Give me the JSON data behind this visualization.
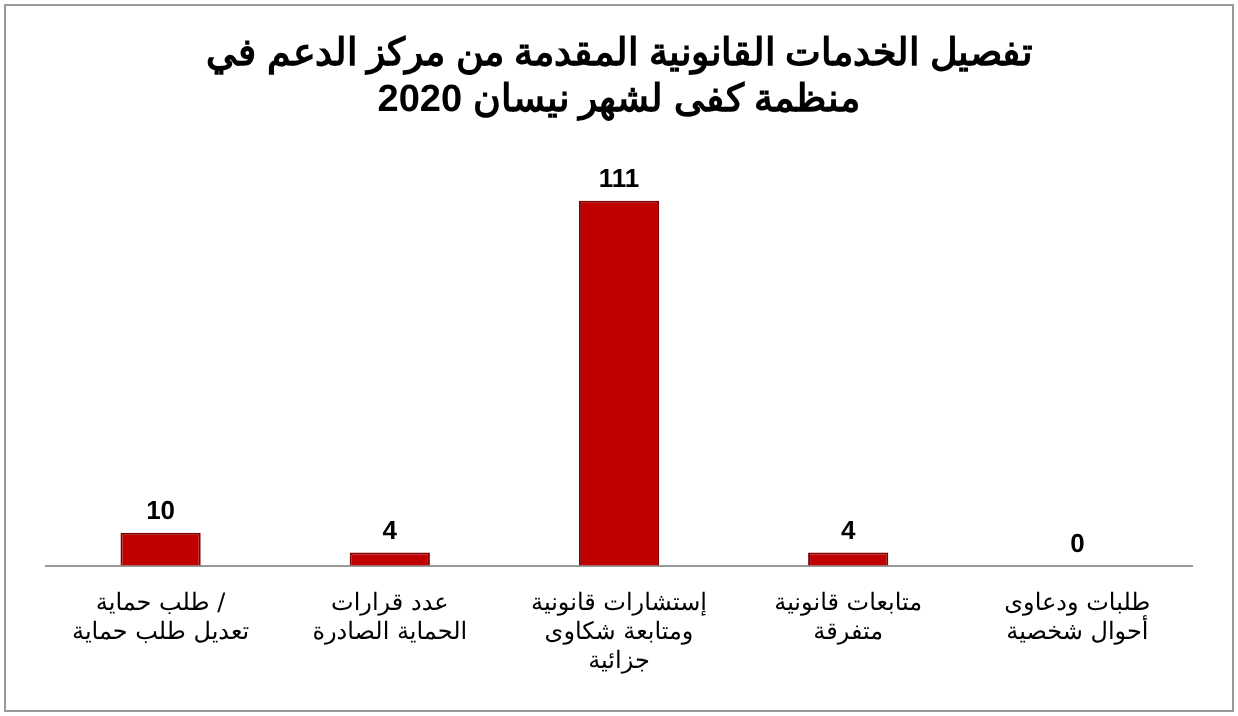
{
  "chart_data": {
    "type": "bar",
    "title": "تفصيل الخدمات القانونية المقدمة من مركز الدعم في منظمة كفى لشهر نيسان 2020",
    "categories": [
      "طلب حماية / تعديل طلب حماية",
      "عدد قرارات الحماية الصادرة",
      "إستشارات قانونية ومتابعة شكاوى جزائية",
      "متابعات قانونية متفرقة",
      "طلبات ودعاوى أحوال شخصية"
    ],
    "values": [
      10,
      4,
      111,
      4,
      0
    ],
    "color": "#c00000",
    "data_labels": true,
    "grid": false,
    "legend": false
  }
}
